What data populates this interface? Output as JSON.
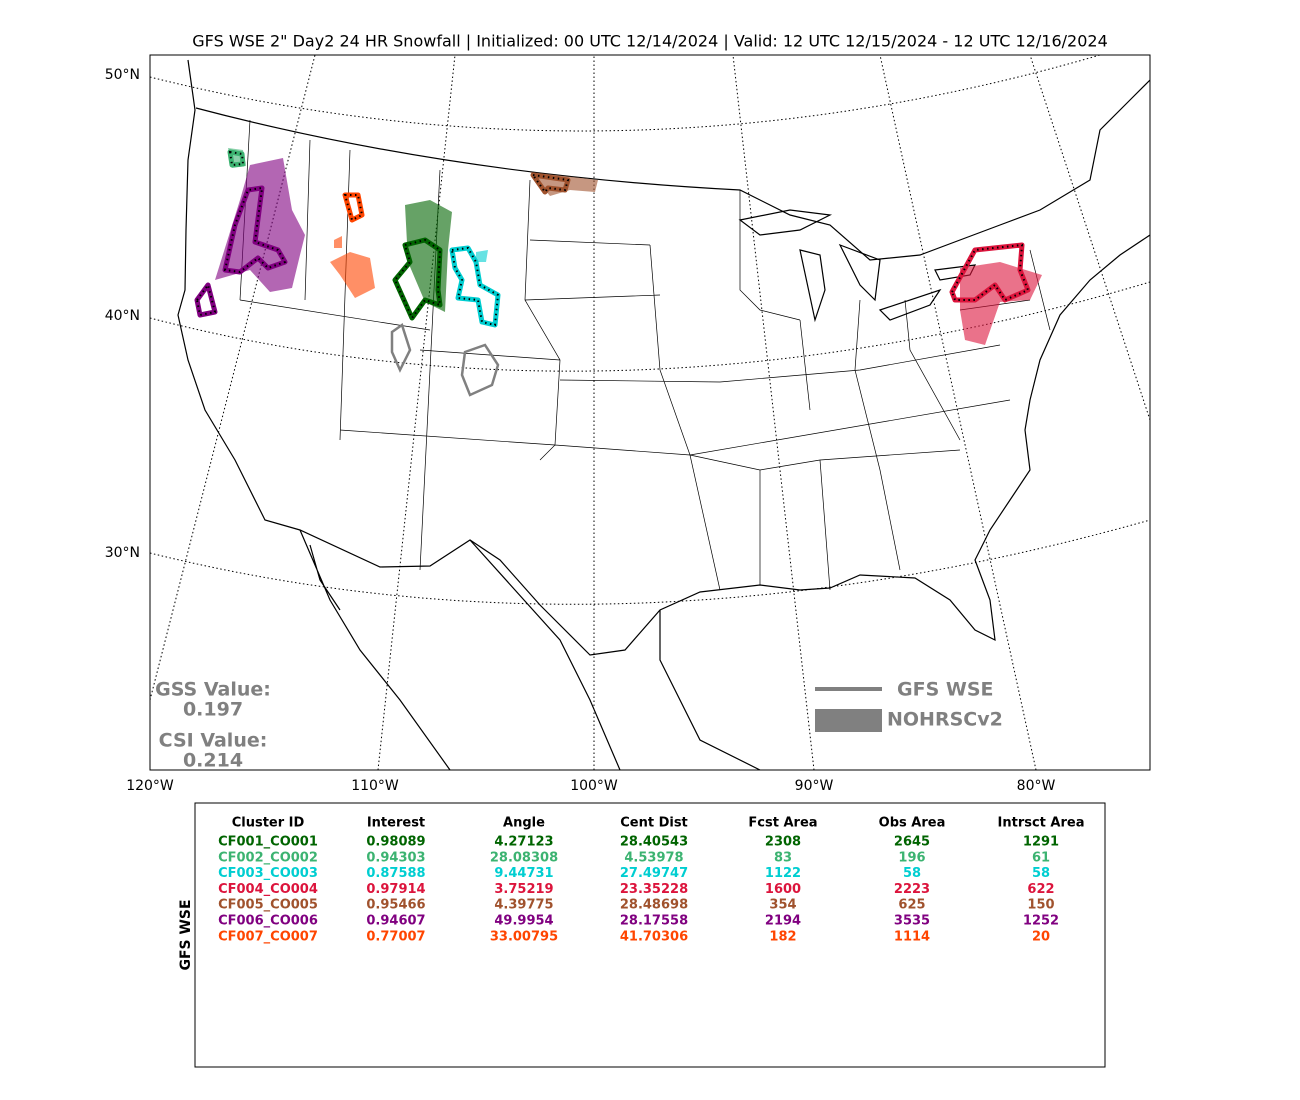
{
  "title": "GFS WSE 2\" Day2 24 HR Snowfall | Initialized: 00 UTC 12/14/2024 | Valid: 12 UTC 12/15/2024 - 12 UTC 12/16/2024",
  "map": {
    "lat_labels": [
      "50°N",
      "40°N",
      "30°N"
    ],
    "lon_labels": [
      "120°W",
      "110°W",
      "100°W",
      "90°W",
      "80°W"
    ],
    "gss_label": "GSS Value:",
    "gss_value": "0.197",
    "csi_label": "CSI Value:",
    "csi_value": "0.214",
    "legend": [
      {
        "label": "GFS WSE"
      },
      {
        "label": "NOHRSCv2"
      }
    ]
  },
  "table": {
    "side_label": "GFS WSE",
    "columns": [
      "Cluster ID",
      "Interest",
      "Angle",
      "Cent Dist",
      "Fcst Area",
      "Obs Area",
      "Intrsct Area"
    ],
    "rows": [
      {
        "color": "#006400",
        "cells": [
          "CF001_CO001",
          "0.98089",
          "4.27123",
          "28.40543",
          "2308",
          "2645",
          "1291"
        ]
      },
      {
        "color": "#3cb371",
        "cells": [
          "CF002_CO002",
          "0.94303",
          "28.08308",
          "4.53978",
          "83",
          "196",
          "61"
        ]
      },
      {
        "color": "#00ced1",
        "cells": [
          "CF003_CO003",
          "0.87588",
          "9.44731",
          "27.49747",
          "1122",
          "58",
          "58"
        ]
      },
      {
        "color": "#dc143c",
        "cells": [
          "CF004_CO004",
          "0.97914",
          "3.75219",
          "23.35228",
          "1600",
          "2223",
          "622"
        ]
      },
      {
        "color": "#a0522d",
        "cells": [
          "CF005_CO005",
          "0.95466",
          "4.39775",
          "28.48698",
          "354",
          "625",
          "150"
        ]
      },
      {
        "color": "#800080",
        "cells": [
          "CF006_CO006",
          "0.94607",
          "49.9954",
          "28.17558",
          "2194",
          "3535",
          "1252"
        ]
      },
      {
        "color": "#ff4500",
        "cells": [
          "CF007_CO007",
          "0.77007",
          "33.00795",
          "41.70306",
          "182",
          "1114",
          "20"
        ]
      }
    ]
  }
}
